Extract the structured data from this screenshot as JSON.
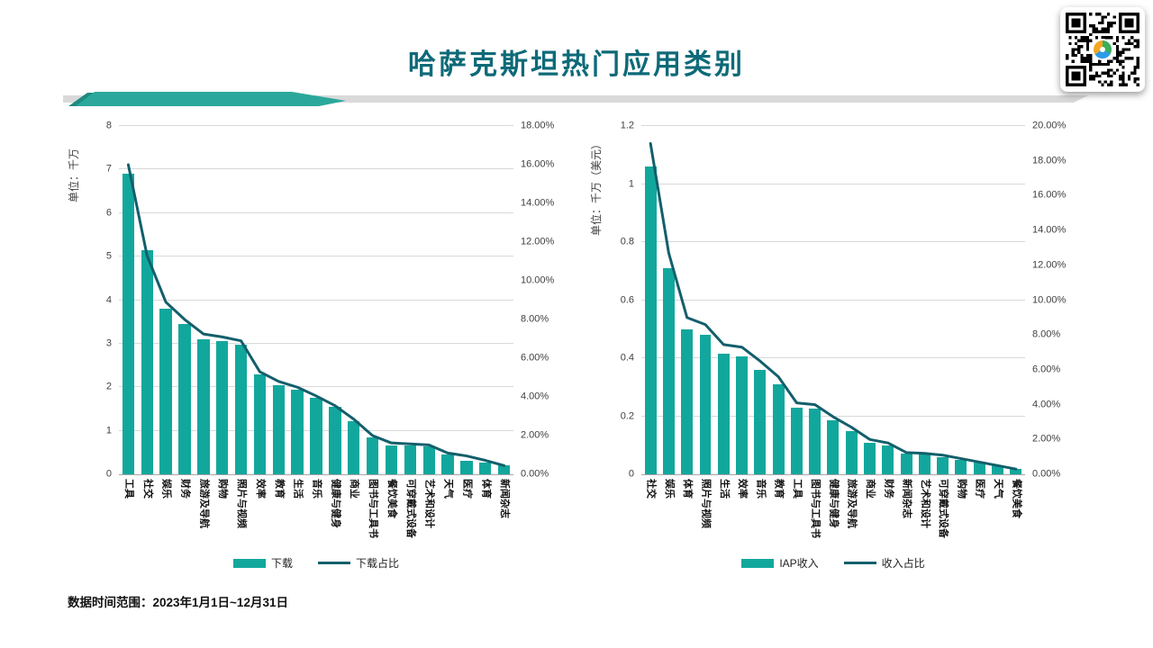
{
  "title": "哈萨克斯坦热门应用类别",
  "footnote": "数据时间范围：2023年1月1日~12月31日",
  "colors": {
    "title": "#0E6A78",
    "bar": "#12A79D",
    "line": "#135F6B",
    "banner_teal": "#2BA89B",
    "banner_teal_dark": "#1E8A80",
    "banner_gray": "#D9D9D9",
    "gridline": "#D9D9D9"
  },
  "chart_data": [
    {
      "type": "bar",
      "subtype": "combo-bar-line",
      "unit_label": "单位：千万",
      "categories": [
        "工具",
        "社交",
        "娱乐",
        "财务",
        "旅游及导航",
        "购物",
        "照片与视频",
        "效率",
        "教育",
        "生活",
        "音乐",
        "健康与健身",
        "商业",
        "图书与工具书",
        "餐饮美食",
        "可穿戴式设备",
        "艺术和设计",
        "天气",
        "医疗",
        "体育",
        "新闻杂志"
      ],
      "series": [
        {
          "name": "下载",
          "kind": "bar",
          "axis": "left",
          "values": [
            6.9,
            5.15,
            3.8,
            3.45,
            3.1,
            3.07,
            2.98,
            2.3,
            2.05,
            1.95,
            1.75,
            1.55,
            1.22,
            0.85,
            0.67,
            0.66,
            0.65,
            0.45,
            0.32,
            0.27,
            0.2
          ]
        },
        {
          "name": "下载占比",
          "kind": "line",
          "axis": "right",
          "values": [
            16.0,
            11.3,
            8.9,
            8.0,
            7.25,
            7.1,
            6.9,
            5.3,
            4.8,
            4.5,
            4.05,
            3.55,
            2.85,
            2.0,
            1.62,
            1.57,
            1.52,
            1.1,
            0.95,
            0.72,
            0.45
          ]
        }
      ],
      "y_left": {
        "min": 0,
        "max": 8,
        "ticks": [
          "0",
          "1",
          "2",
          "3",
          "4",
          "5",
          "6",
          "7",
          "8"
        ]
      },
      "y_right": {
        "min": 0,
        "max": 18,
        "ticks": [
          "0.00%",
          "2.00%",
          "4.00%",
          "6.00%",
          "8.00%",
          "10.00%",
          "12.00%",
          "14.00%",
          "16.00%",
          "18.00%"
        ]
      },
      "grid": true,
      "legend_position": "bottom"
    },
    {
      "type": "bar",
      "subtype": "combo-bar-line",
      "unit_label": "单位：千万（美元）",
      "categories": [
        "社交",
        "娱乐",
        "体育",
        "照片与视频",
        "生活",
        "效率",
        "音乐",
        "教育",
        "工具",
        "图书与工具书",
        "健康与健身",
        "旅游及导航",
        "商业",
        "财务",
        "新闻杂志",
        "艺术和设计",
        "可穿戴式设备",
        "购物",
        "医疗",
        "天气",
        "餐饮美食"
      ],
      "series": [
        {
          "name": "IAP收入",
          "kind": "bar",
          "axis": "left",
          "values": [
            1.06,
            0.71,
            0.5,
            0.48,
            0.415,
            0.405,
            0.36,
            0.31,
            0.23,
            0.225,
            0.185,
            0.15,
            0.11,
            0.1,
            0.07,
            0.07,
            0.06,
            0.05,
            0.04,
            0.03,
            0.02
          ]
        },
        {
          "name": "收入占比",
          "kind": "line",
          "axis": "right",
          "values": [
            19.0,
            12.7,
            9.0,
            8.6,
            7.45,
            7.3,
            6.5,
            5.6,
            4.1,
            4.0,
            3.3,
            2.7,
            2.0,
            1.8,
            1.25,
            1.2,
            1.1,
            0.9,
            0.7,
            0.5,
            0.3
          ]
        }
      ],
      "y_left": {
        "min": 0,
        "max": 1.2,
        "ticks": [
          "0",
          "0.2",
          "0.4",
          "0.6",
          "0.8",
          "1",
          "1.2"
        ]
      },
      "y_right": {
        "min": 0,
        "max": 20,
        "ticks": [
          "0.00%",
          "2.00%",
          "4.00%",
          "6.00%",
          "8.00%",
          "10.00%",
          "12.00%",
          "14.00%",
          "16.00%",
          "18.00%",
          "20.00%"
        ]
      },
      "grid": true,
      "legend_position": "bottom"
    }
  ]
}
